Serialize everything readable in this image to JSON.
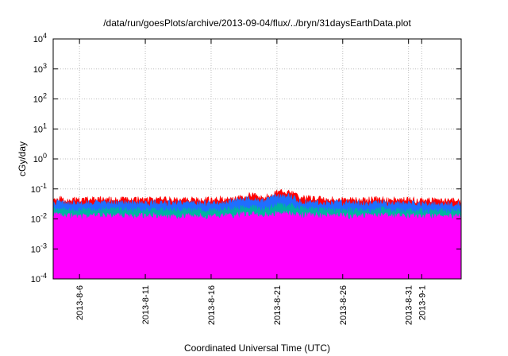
{
  "chart_data": {
    "type": "area",
    "title": "/data/run/goesPlots/archive/2013-09-04/flux/../bryn/31daysEarthData.plot",
    "xlabel": "Coordinated Universal Time (UTC)",
    "ylabel": "cGy/day",
    "yscale": "log",
    "ylim": [
      0.0001,
      10000
    ],
    "xlim": [
      "2013-08-04",
      "2013-09-04"
    ],
    "grid": true,
    "y_ticks": [
      {
        "base": "10",
        "exp": "-4",
        "value": 0.0001
      },
      {
        "base": "10",
        "exp": "-3",
        "value": 0.001
      },
      {
        "base": "10",
        "exp": "-2",
        "value": 0.01
      },
      {
        "base": "10",
        "exp": "-1",
        "value": 0.1
      },
      {
        "base": "10",
        "exp": "0",
        "value": 1
      },
      {
        "base": "10",
        "exp": "1",
        "value": 10
      },
      {
        "base": "10",
        "exp": "2",
        "value": 100
      },
      {
        "base": "10",
        "exp": "3",
        "value": 1000
      },
      {
        "base": "10",
        "exp": "4",
        "value": 10000
      }
    ],
    "x_ticks": [
      {
        "label": "2013-8-6",
        "date": "2013-08-06"
      },
      {
        "label": "2013-8-11",
        "date": "2013-08-11"
      },
      {
        "label": "2013-8-16",
        "date": "2013-08-16"
      },
      {
        "label": "2013-8-21",
        "date": "2013-08-21"
      },
      {
        "label": "2013-8-26",
        "date": "2013-08-26"
      },
      {
        "label": "2013-8-31",
        "date": "2013-08-31"
      },
      {
        "label": "2013-9-1",
        "date": "2013-09-01"
      }
    ],
    "series": [
      {
        "color": "#ff0000",
        "x": [
          "2013-08-04",
          "2013-08-06",
          "2013-08-08",
          "2013-08-10",
          "2013-08-12",
          "2013-08-14",
          "2013-08-16",
          "2013-08-18",
          "2013-08-19",
          "2013-08-20",
          "2013-08-21",
          "2013-08-22",
          "2013-08-23",
          "2013-08-25",
          "2013-08-27",
          "2013-08-29",
          "2013-08-31",
          "2013-09-02",
          "2013-09-04"
        ],
        "values": [
          0.045,
          0.042,
          0.044,
          0.043,
          0.045,
          0.042,
          0.043,
          0.052,
          0.062,
          0.048,
          0.08,
          0.075,
          0.048,
          0.044,
          0.043,
          0.044,
          0.042,
          0.04,
          0.04
        ]
      },
      {
        "color": "#1f6fff",
        "x": [
          "2013-08-04",
          "2013-08-06",
          "2013-08-08",
          "2013-08-10",
          "2013-08-12",
          "2013-08-14",
          "2013-08-16",
          "2013-08-18",
          "2013-08-19",
          "2013-08-20",
          "2013-08-21",
          "2013-08-22",
          "2013-08-23",
          "2013-08-25",
          "2013-08-27",
          "2013-08-29",
          "2013-08-31",
          "2013-09-02",
          "2013-09-04"
        ],
        "values": [
          0.034,
          0.032,
          0.034,
          0.033,
          0.034,
          0.032,
          0.033,
          0.04,
          0.047,
          0.037,
          0.058,
          0.055,
          0.036,
          0.034,
          0.033,
          0.034,
          0.032,
          0.031,
          0.031
        ]
      },
      {
        "color": "#00b3a1",
        "x": [
          "2013-08-04",
          "2013-08-06",
          "2013-08-08",
          "2013-08-10",
          "2013-08-12",
          "2013-08-14",
          "2013-08-16",
          "2013-08-18",
          "2013-08-19",
          "2013-08-20",
          "2013-08-21",
          "2013-08-22",
          "2013-08-23",
          "2013-08-25",
          "2013-08-27",
          "2013-08-29",
          "2013-08-31",
          "2013-09-02",
          "2013-09-04"
        ],
        "values": [
          0.02,
          0.019,
          0.02,
          0.019,
          0.02,
          0.019,
          0.019,
          0.022,
          0.024,
          0.021,
          0.028,
          0.027,
          0.021,
          0.02,
          0.019,
          0.02,
          0.019,
          0.018,
          0.018
        ]
      },
      {
        "color": "#ff00ff",
        "x": [
          "2013-08-04",
          "2013-08-06",
          "2013-08-08",
          "2013-08-10",
          "2013-08-12",
          "2013-08-14",
          "2013-08-16",
          "2013-08-18",
          "2013-08-19",
          "2013-08-20",
          "2013-08-21",
          "2013-08-22",
          "2013-08-23",
          "2013-08-25",
          "2013-08-27",
          "2013-08-29",
          "2013-08-31",
          "2013-09-02",
          "2013-09-04"
        ],
        "values": [
          0.013,
          0.012,
          0.013,
          0.012,
          0.013,
          0.012,
          0.012,
          0.013,
          0.014,
          0.013,
          0.015,
          0.015,
          0.013,
          0.013,
          0.012,
          0.013,
          0.012,
          0.012,
          0.012
        ],
        "floor": 0.0025
      }
    ],
    "dropouts": [
      {
        "series": "magenta",
        "x": "2013-08-09",
        "value": 0.0001
      },
      {
        "series": "magenta",
        "x": "2013-08-16",
        "value": 0.0001
      },
      {
        "series": "magenta",
        "x": "2013-08-22",
        "value": 0.0001
      },
      {
        "series": "magenta",
        "x": "2013-08-23",
        "value": 0.0001
      },
      {
        "series": "magenta",
        "x": "2013-08-30",
        "value": 0.0001
      },
      {
        "series": "magenta",
        "x": "2013-09-03",
        "value": 0.0001
      }
    ]
  }
}
